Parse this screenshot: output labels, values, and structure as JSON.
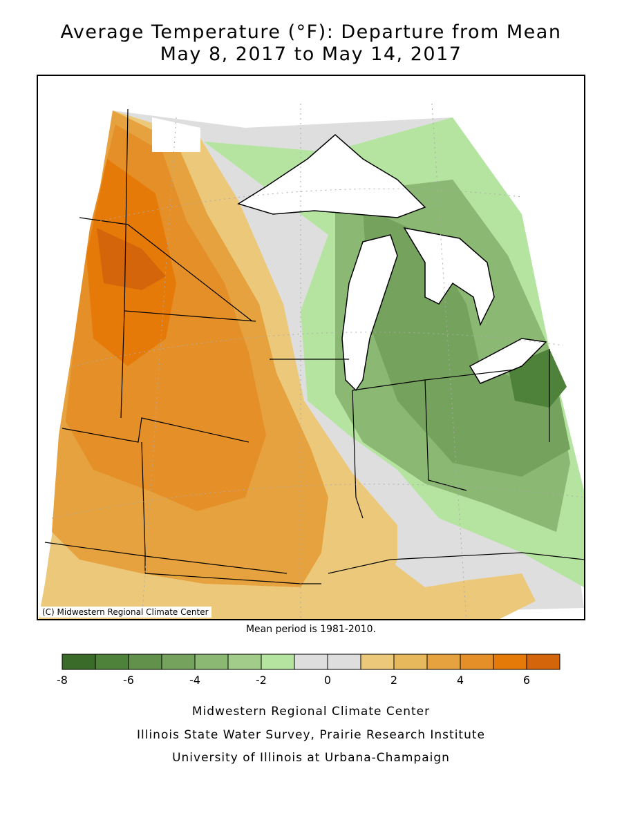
{
  "title_line1": "Average Temperature (°F): Departure from Mean",
  "title_line2": "May 8, 2017 to May 14, 2017",
  "copyright": "(C) Midwestern Regional Climate Center",
  "mean_period": "Mean period is 1981-2010.",
  "legend": {
    "colors": [
      "#3a6b28",
      "#4e8139",
      "#62914c",
      "#75a35e",
      "#8bb873",
      "#a2cc8a",
      "#b4e4a0",
      "#dedede",
      "#dedede",
      "#ecc97a",
      "#e8b85c",
      "#e6a23e",
      "#e58f28",
      "#e67a08",
      "#d4650a"
    ],
    "ticks": [
      "-8",
      "-6",
      "-4",
      "-2",
      "0",
      "2",
      "4",
      "6"
    ],
    "tick_values": [
      -8,
      -6,
      -4,
      -2,
      0,
      2,
      4,
      6
    ],
    "range": [
      -8,
      7
    ]
  },
  "credits": {
    "line1": "Midwestern Regional Climate Center",
    "line2": "Illinois State Water Survey, Prairie Research Institute",
    "line3": "University of Illinois at Urbana-Champaign"
  }
}
